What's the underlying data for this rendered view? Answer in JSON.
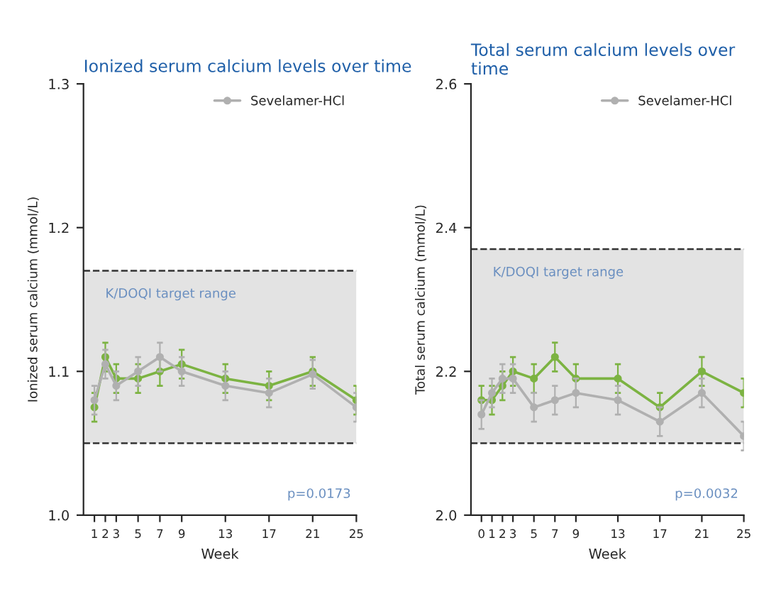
{
  "chart_data": [
    {
      "type": "line",
      "title": "Ionized serum calcium levels over time",
      "xlabel": "Week",
      "ylabel": "Ionized serum calcium (mmol/L)",
      "x": [
        1,
        2,
        3,
        5,
        7,
        9,
        13,
        17,
        21,
        25
      ],
      "series": [
        {
          "color": "#7cb342",
          "values": [
            1.075,
            1.11,
            1.095,
            1.095,
            1.1,
            1.105,
            1.095,
            1.09,
            1.1,
            1.08
          ],
          "errors": [
            0.01,
            0.01,
            0.01,
            0.01,
            0.01,
            0.01,
            0.01,
            0.01,
            0.01,
            0.01
          ]
        },
        {
          "name": "Sevelamer-HCl",
          "color": "#b0b0b0",
          "values": [
            1.08,
            1.105,
            1.09,
            1.1,
            1.11,
            1.1,
            1.09,
            1.085,
            1.098,
            1.075
          ],
          "errors": [
            0.01,
            0.01,
            0.01,
            0.01,
            0.01,
            0.01,
            0.01,
            0.01,
            0.01,
            0.01
          ]
        }
      ],
      "xlim": [
        0,
        25
      ],
      "xticks": [
        1,
        2,
        3,
        5,
        7,
        9,
        13,
        17,
        21,
        25
      ],
      "ylim": [
        1.0,
        1.3
      ],
      "yticks": [
        {
          "value": 1.0,
          "label": "1.0"
        },
        1.1,
        1.2,
        1.3
      ],
      "bands": [
        {
          "axis": "y",
          "from": 1.05,
          "to": 1.17,
          "label": "K/DOQI target range",
          "color": "#e3e3e3"
        }
      ],
      "ref_lines": [
        {
          "axis": "y",
          "value": 1.05,
          "color": "#333333",
          "line_style": "dashed"
        },
        {
          "axis": "y",
          "value": 1.17,
          "color": "#333333",
          "line_style": "dashed"
        }
      ],
      "annotations": [
        "p=0.0173"
      ],
      "marker": "circle",
      "legend": "top right",
      "grid": false
    },
    {
      "type": "line",
      "title": "Total serum calcium levels over time",
      "xlabel": "Week",
      "ylabel": "Total serum calcium (mmol/L)",
      "x": [
        0,
        1,
        2,
        3,
        5,
        7,
        9,
        13,
        17,
        21,
        25
      ],
      "series": [
        {
          "color": "#7cb342",
          "values": [
            2.16,
            2.16,
            2.18,
            2.2,
            2.19,
            2.22,
            2.19,
            2.19,
            2.15,
            2.2,
            2.17
          ],
          "errors": [
            0.02,
            0.02,
            0.02,
            0.02,
            0.02,
            0.02,
            0.02,
            0.02,
            0.02,
            0.02,
            0.02
          ]
        },
        {
          "name": "Sevelamer-HCl",
          "color": "#b0b0b0",
          "values": [
            2.14,
            2.17,
            2.19,
            2.19,
            2.15,
            2.16,
            2.17,
            2.16,
            2.13,
            2.17,
            2.11
          ],
          "errors": [
            0.02,
            0.02,
            0.02,
            0.02,
            0.02,
            0.02,
            0.02,
            0.02,
            0.02,
            0.02,
            0.02
          ]
        }
      ],
      "xlim": [
        -1,
        25
      ],
      "xticks": [
        0,
        1,
        2,
        3,
        5,
        7,
        9,
        13,
        17,
        21,
        25
      ],
      "ylim": [
        2.0,
        2.6
      ],
      "yticks": [
        {
          "value": 2.0,
          "label": "2.0"
        },
        2.2,
        2.4,
        2.6
      ],
      "bands": [
        {
          "axis": "y",
          "from": 2.1,
          "to": 2.37,
          "label": "K/DOQI target range",
          "color": "#e3e3e3"
        }
      ],
      "ref_lines": [
        {
          "axis": "y",
          "value": 2.1,
          "color": "#333333",
          "line_style": "dashed"
        },
        {
          "axis": "y",
          "value": 2.37,
          "color": "#333333",
          "line_style": "dashed"
        }
      ],
      "annotations": [
        "p=0.0032"
      ],
      "marker": "circle",
      "legend": "top right",
      "grid": false
    }
  ]
}
